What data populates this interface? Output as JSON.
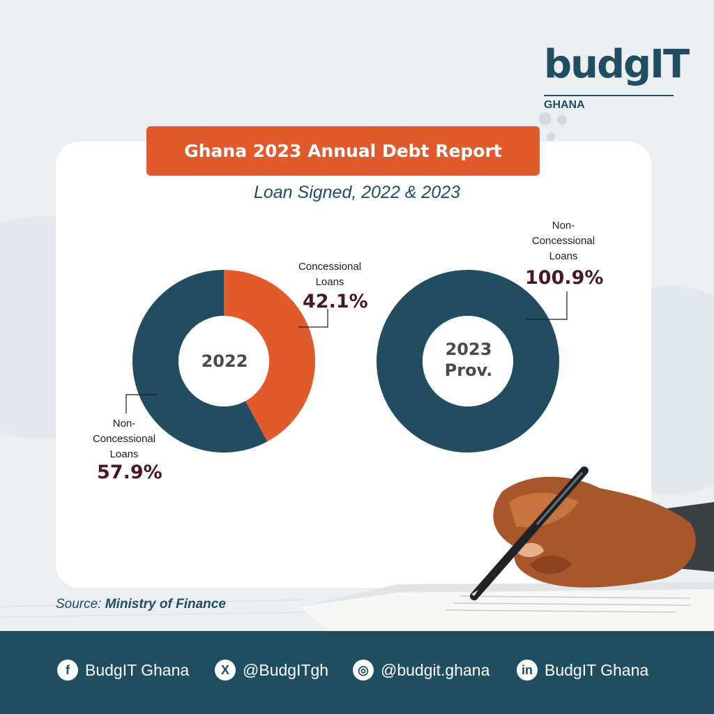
{
  "brand": {
    "name": "budgIT",
    "country": "GHANA"
  },
  "header": {
    "title": "Ghana 2023 Annual Debt Report",
    "subtitle": "Loan Signed, 2022 & 2023"
  },
  "colors": {
    "concessional": "#e15a2b",
    "non_concessional": "#224d60",
    "accent": "#e15a2b"
  },
  "chart_data": [
    {
      "type": "pie",
      "variant": "donut",
      "center_label": "2022",
      "slices": [
        {
          "label": "Concessional Loans",
          "value": 42.1,
          "display": "42.1%"
        },
        {
          "label": "Non-Concessional Loans",
          "value": 57.9,
          "display": "57.9%"
        }
      ]
    },
    {
      "type": "pie",
      "variant": "donut",
      "center_label": "2023 Prov.",
      "slices": [
        {
          "label": "Non-Concessional Loans",
          "value": 100.9,
          "display": "100.9%"
        }
      ]
    }
  ],
  "labels": {
    "c2022_conc": "Concessional\nLoans",
    "c2022_nonc": "Non-\nConcessional\nLoans",
    "c2023_nonc": "Non-\nConcessional\nLoans",
    "center_2023_line1": "2023",
    "center_2023_line2": "Prov."
  },
  "source": {
    "prefix": "Source:",
    "text": "Ministry of Finance"
  },
  "footer": {
    "socials": [
      {
        "icon": "facebook-icon",
        "glyph": "f",
        "handle": "BudgIT Ghana"
      },
      {
        "icon": "x-icon",
        "glyph": "X",
        "handle": "@BudgITgh"
      },
      {
        "icon": "instagram-icon",
        "glyph": "◎",
        "handle": "@budgit.ghana"
      },
      {
        "icon": "linkedin-icon",
        "glyph": "in",
        "handle": "BudgIT Ghana"
      }
    ]
  }
}
